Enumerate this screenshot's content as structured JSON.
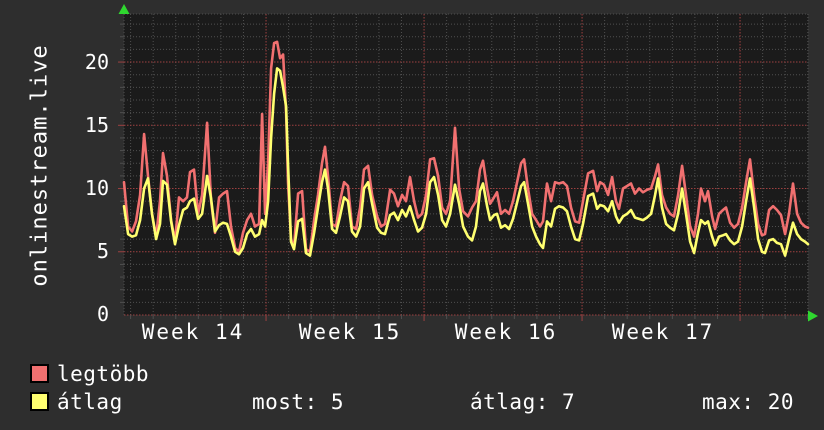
{
  "title_vertical": "onlinestream.live",
  "colors": {
    "background": "#2e2e2e",
    "plot_background": "#1b1b1b",
    "grid_minor": "#4f4f4f",
    "grid_major": "#9e4040",
    "text": "#ffffff",
    "arrow_green": "#2fd72f",
    "series_legtobb": "#f17070",
    "series_atlag": "#ffff70"
  },
  "chart_data": {
    "type": "line",
    "title": "onlinestream.live",
    "xlabel": "",
    "ylabel": "",
    "grid": "dotted, minor gray daily/unit lines, major red weekly/5-unit lines",
    "legend_position": "bottom-left",
    "x_axis": {
      "unit": "week",
      "range": [
        14.101,
        18.43
      ],
      "tick_labels": [
        "Week 14",
        "Week 15",
        "Week 16",
        "Week 17"
      ],
      "tick_label_positions": [
        14.54,
        15.53,
        16.52,
        17.51
      ],
      "major_gridlines": [
        15,
        16,
        17,
        18
      ],
      "minor_step_weeks": 0.142857
    },
    "y_axis": {
      "range": [
        0,
        23.8
      ],
      "tick_labels": [
        "0",
        "5",
        "10",
        "15",
        "20"
      ],
      "tick_positions": [
        0,
        5,
        10,
        15,
        20
      ],
      "major_step": 5,
      "minor_step": 1
    },
    "x_weeks": [
      14.101,
      14.127,
      14.152,
      14.177,
      14.203,
      14.228,
      14.253,
      14.278,
      14.304,
      14.329,
      14.348,
      14.373,
      14.399,
      14.424,
      14.449,
      14.475,
      14.5,
      14.519,
      14.544,
      14.57,
      14.595,
      14.627,
      14.652,
      14.677,
      14.703,
      14.728,
      14.753,
      14.778,
      14.804,
      14.829,
      14.854,
      14.88,
      14.905,
      14.93,
      14.956,
      14.975,
      14.994,
      15.013,
      15.032,
      15.051,
      15.07,
      15.089,
      15.108,
      15.127,
      15.139,
      15.158,
      15.177,
      15.203,
      15.228,
      15.253,
      15.278,
      15.304,
      15.329,
      15.354,
      15.373,
      15.392,
      15.418,
      15.443,
      15.468,
      15.494,
      15.519,
      15.544,
      15.57,
      15.595,
      15.62,
      15.646,
      15.671,
      15.703,
      15.728,
      15.753,
      15.785,
      15.81,
      15.835,
      15.861,
      15.886,
      15.911,
      15.937,
      15.962,
      15.987,
      16.013,
      16.038,
      16.063,
      16.089,
      16.114,
      16.139,
      16.165,
      16.196,
      16.222,
      16.247,
      16.278,
      16.304,
      16.329,
      16.354,
      16.373,
      16.399,
      16.418,
      16.443,
      16.462,
      16.487,
      16.513,
      16.538,
      16.563,
      16.589,
      16.614,
      16.633,
      16.658,
      16.684,
      16.709,
      16.734,
      16.753,
      16.778,
      16.804,
      16.829,
      16.854,
      16.88,
      16.905,
      16.93,
      16.956,
      16.981,
      17.006,
      17.038,
      17.07,
      17.095,
      17.114,
      17.139,
      17.165,
      17.19,
      17.215,
      17.234,
      17.259,
      17.285,
      17.31,
      17.335,
      17.361,
      17.386,
      17.411,
      17.437,
      17.462,
      17.481,
      17.506,
      17.532,
      17.557,
      17.582,
      17.608,
      17.633,
      17.658,
      17.684,
      17.709,
      17.734,
      17.753,
      17.778,
      17.797,
      17.823,
      17.842,
      17.867,
      17.892,
      17.911,
      17.937,
      17.962,
      17.987,
      18.013,
      18.038,
      18.063,
      18.089,
      18.114,
      18.139,
      18.158,
      18.184,
      18.209,
      18.234,
      18.259,
      18.285,
      18.31,
      18.335,
      18.361,
      18.386,
      18.411,
      18.43
    ],
    "series": [
      {
        "name": "legtöbb",
        "color": "#f17070",
        "values": [
          10.5,
          7.0,
          6.6,
          7.4,
          9.5,
          14.3,
          11.0,
          8.0,
          6.2,
          9.0,
          12.8,
          11.0,
          7.5,
          5.8,
          9.3,
          9.0,
          9.3,
          11.3,
          11.5,
          8.0,
          9.5,
          15.2,
          9.0,
          6.5,
          9.3,
          9.6,
          9.8,
          7.0,
          5.3,
          5.0,
          6.5,
          7.5,
          8.0,
          7.0,
          7.2,
          15.9,
          8.0,
          12.0,
          19.5,
          21.5,
          21.6,
          20.3,
          20.6,
          16.0,
          10.5,
          6.0,
          5.4,
          9.6,
          9.8,
          5.2,
          5.0,
          7.5,
          9.5,
          12.0,
          13.3,
          11.0,
          7.2,
          7.0,
          9.0,
          10.5,
          10.2,
          7.0,
          6.8,
          8.5,
          11.5,
          11.8,
          9.5,
          7.8,
          7.0,
          7.2,
          9.9,
          9.6,
          8.6,
          9.5,
          9.0,
          10.9,
          9.0,
          7.7,
          8.0,
          9.5,
          12.3,
          12.4,
          11.0,
          8.5,
          8.0,
          9.0,
          14.8,
          10.0,
          8.2,
          7.8,
          8.5,
          9.0,
          11.5,
          12.2,
          10.0,
          8.8,
          9.3,
          9.7,
          8.0,
          8.3,
          8.0,
          9.0,
          10.5,
          12.0,
          12.3,
          10.0,
          8.0,
          7.5,
          7.0,
          7.4,
          10.4,
          9.0,
          10.5,
          10.4,
          10.5,
          10.2,
          8.5,
          7.4,
          7.3,
          9.0,
          11.2,
          11.4,
          9.8,
          10.5,
          10.3,
          9.5,
          10.9,
          9.0,
          8.4,
          10.0,
          10.2,
          10.4,
          9.6,
          10.0,
          9.7,
          9.9,
          10.0,
          11.0,
          11.9,
          9.5,
          8.5,
          8.0,
          7.8,
          9.5,
          11.8,
          9.5,
          7.0,
          6.2,
          8.0,
          10.0,
          9.0,
          9.8,
          7.8,
          6.8,
          8.0,
          8.3,
          8.5,
          7.3,
          6.9,
          7.2,
          8.5,
          10.5,
          12.3,
          9.5,
          7.2,
          6.3,
          6.4,
          8.3,
          8.6,
          8.3,
          7.9,
          6.4,
          8.0,
          10.4,
          8.0,
          7.3,
          7.0,
          6.9
        ]
      },
      {
        "name": "átlag",
        "color": "#ffff70",
        "values": [
          8.6,
          6.4,
          6.2,
          6.3,
          7.5,
          10.0,
          10.8,
          8.0,
          6.0,
          7.2,
          10.6,
          10.3,
          7.4,
          5.6,
          7.1,
          8.3,
          8.5,
          9.0,
          9.2,
          7.6,
          8.0,
          11.0,
          9.2,
          6.6,
          7.1,
          7.3,
          7.2,
          6.2,
          5.0,
          4.8,
          5.3,
          6.4,
          6.8,
          6.2,
          6.4,
          7.5,
          7.0,
          9.0,
          14.0,
          17.5,
          19.5,
          19.3,
          18.0,
          16.5,
          12.0,
          5.8,
          5.2,
          7.4,
          7.6,
          4.9,
          4.7,
          6.5,
          8.5,
          10.5,
          11.5,
          10.0,
          6.8,
          6.5,
          7.8,
          9.3,
          9.0,
          6.6,
          6.2,
          7.0,
          10.0,
          10.5,
          8.8,
          6.9,
          6.5,
          6.4,
          7.9,
          8.1,
          7.5,
          8.3,
          7.8,
          8.6,
          7.5,
          6.6,
          6.9,
          8.0,
          10.5,
          10.9,
          9.5,
          7.5,
          7.0,
          8.0,
          10.3,
          8.8,
          7.0,
          6.2,
          5.9,
          7.0,
          9.8,
          10.4,
          8.6,
          7.5,
          7.9,
          8.0,
          6.9,
          7.1,
          6.8,
          7.6,
          8.9,
          10.2,
          10.5,
          8.8,
          7.0,
          6.2,
          5.6,
          5.3,
          7.4,
          7.0,
          8.4,
          8.6,
          8.5,
          8.2,
          7.0,
          6.0,
          5.9,
          7.2,
          9.4,
          9.6,
          8.4,
          8.7,
          8.6,
          8.2,
          9.0,
          7.8,
          7.3,
          7.8,
          8.0,
          8.3,
          7.7,
          7.6,
          7.5,
          7.7,
          8.0,
          9.5,
          10.8,
          8.5,
          7.2,
          6.9,
          6.7,
          8.0,
          10.0,
          8.0,
          5.8,
          4.9,
          6.5,
          7.5,
          7.2,
          7.4,
          6.2,
          5.5,
          6.2,
          6.3,
          6.4,
          5.9,
          5.6,
          5.8,
          7.0,
          9.0,
          10.8,
          8.5,
          6.0,
          5.0,
          4.9,
          5.9,
          6.0,
          5.7,
          5.6,
          4.7,
          6.0,
          7.3,
          6.4,
          6.0,
          5.8,
          5.6
        ]
      }
    ],
    "stats": [
      {
        "label": "most",
        "value": 5,
        "display": "most: 5"
      },
      {
        "label": "átlag",
        "value": 7,
        "display": "átlag: 7"
      },
      {
        "label": "max",
        "value": 20,
        "display": "max: 20"
      }
    ]
  }
}
